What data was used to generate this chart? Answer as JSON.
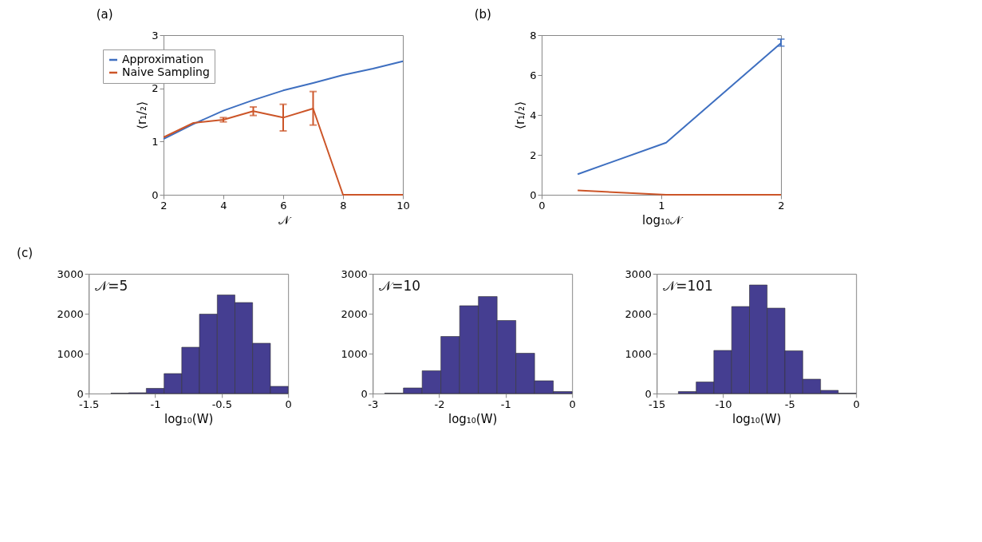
{
  "chart_data": [
    {
      "type": "line",
      "title": "(a)",
      "xlabel": "𝒩",
      "ylabel": "⟨r₁/₂⟩",
      "x": [
        2,
        3,
        4,
        5,
        6,
        7,
        8,
        9,
        10
      ],
      "xlim": [
        2,
        10
      ],
      "xticks": [
        2,
        4,
        6,
        8,
        10
      ],
      "ylim": [
        0,
        3
      ],
      "yticks": [
        0,
        1,
        2,
        3
      ],
      "legend": "top left",
      "series": [
        {
          "name": "Approximation",
          "color": "#3e6fc0",
          "values": [
            1.05,
            1.33,
            1.58,
            1.78,
            1.96,
            2.1,
            2.25,
            2.37,
            2.51
          ]
        },
        {
          "name": "Naive Sampling",
          "color": "#cc5528",
          "values": [
            1.08,
            1.35,
            1.41,
            1.57,
            1.45,
            1.62,
            0,
            0,
            0
          ],
          "errors": [
            null,
            null,
            0.04,
            0.08,
            0.25,
            [
              1.31,
              1.94
            ],
            null,
            null,
            null
          ]
        }
      ]
    },
    {
      "type": "line",
      "title": "(b)",
      "xlabel": "log₁₀𝒩",
      "ylabel": "⟨r₁/₂⟩",
      "x": [
        0.301,
        1.04,
        2.0
      ],
      "xlim": [
        0,
        2
      ],
      "xticks": [
        0,
        1,
        2
      ],
      "ylim": [
        0,
        8
      ],
      "yticks": [
        0,
        2,
        4,
        6,
        8
      ],
      "legend": "top left",
      "series": [
        {
          "name": "Approximation",
          "color": "#3e6fc0",
          "values": [
            1.03,
            2.61,
            7.6
          ],
          "errors": [
            null,
            null,
            [
              7.45,
              7.8
            ]
          ]
        },
        {
          "name": "Naive Sampling",
          "color": "#cc5528",
          "values": [
            0.22,
            0,
            0
          ]
        }
      ]
    },
    {
      "type": "histogram",
      "title": "(c)",
      "xlabel": "log₁₀(W)",
      "annotations": [
        "𝒩=5"
      ],
      "color": "#453e91",
      "xlim": [
        -1.5,
        0
      ],
      "xticks": [
        -1.5,
        -1,
        -0.5,
        0
      ],
      "ylim": [
        0,
        3000
      ],
      "yticks": [
        0,
        1000,
        2000,
        3000
      ],
      "bins": [
        -1.333,
        -1.2,
        -1.067,
        -0.933,
        -0.8,
        -0.667,
        -0.533,
        -0.4,
        -0.267,
        -0.133,
        0
      ],
      "values": [
        10,
        20,
        130,
        500,
        1160,
        1990,
        2470,
        2280,
        1260,
        180
      ]
    },
    {
      "type": "histogram",
      "xlabel": "log₁₀(W)",
      "annotations": [
        "𝒩=10"
      ],
      "color": "#453e91",
      "xlim": [
        -3,
        0
      ],
      "xticks": [
        -3,
        -2,
        -1,
        0
      ],
      "ylim": [
        0,
        3000
      ],
      "yticks": [
        0,
        1000,
        2000,
        3000
      ],
      "bins": [
        -2.82,
        -2.538,
        -2.256,
        -1.974,
        -1.692,
        -1.41,
        -1.128,
        -0.846,
        -0.564,
        -0.282,
        0
      ],
      "values": [
        10,
        140,
        570,
        1430,
        2200,
        2430,
        1830,
        1010,
        320,
        50
      ]
    },
    {
      "type": "histogram",
      "xlabel": "log₁₀(W)",
      "annotations": [
        "𝒩=101"
      ],
      "color": "#453e91",
      "xlim": [
        -15,
        0
      ],
      "xticks": [
        -15,
        -10,
        -5,
        0
      ],
      "ylim": [
        0,
        3000
      ],
      "yticks": [
        0,
        1000,
        2000,
        3000
      ],
      "bins": [
        -13.37,
        -12.03,
        -10.7,
        -9.36,
        -8.02,
        -6.69,
        -5.35,
        -4.01,
        -2.67,
        -1.34,
        0
      ],
      "values": [
        50,
        290,
        1080,
        2180,
        2720,
        2140,
        1070,
        360,
        80,
        10
      ]
    }
  ]
}
